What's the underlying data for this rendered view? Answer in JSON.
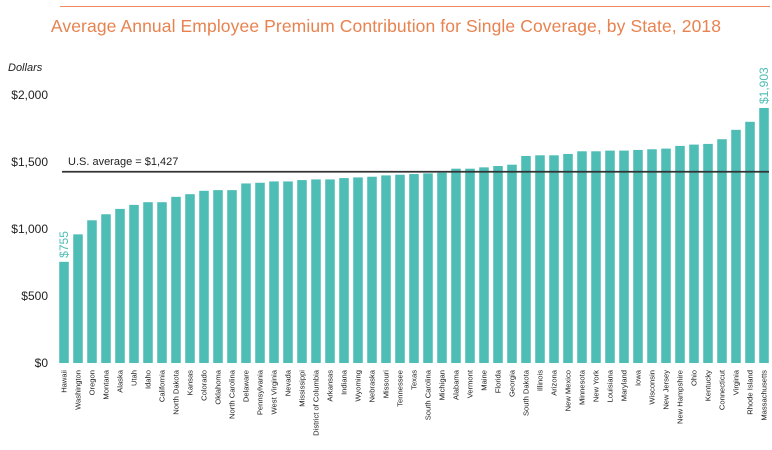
{
  "chart_data": {
    "type": "bar",
    "title": "Average Annual Employee Premium Contribution for Single Coverage, by State, 2018",
    "ylabel": "Dollars",
    "xlabel": "",
    "ylim": [
      0,
      2000
    ],
    "y_ticks": [
      0,
      500,
      1000,
      1500,
      2000
    ],
    "y_tick_labels": [
      "$0",
      "$500",
      "$1,000",
      "$1,500",
      "$2,000"
    ],
    "grid": false,
    "bar_color": "#4dbdb5",
    "reference_line": {
      "label": "U.S. average = $1,427",
      "value": 1427,
      "color": "#333333"
    },
    "categories": [
      "Hawaii",
      "Washington",
      "Oregon",
      "Montana",
      "Alaska",
      "Utah",
      "Idaho",
      "California",
      "North Dakota",
      "Kansas",
      "Colorado",
      "Oklahoma",
      "North Carolina",
      "Delaware",
      "Pennsylvania",
      "West Virginia",
      "Nevada",
      "Mississippi",
      "District of Columbia",
      "Arkansas",
      "Indiana",
      "Wyoming",
      "Nebraska",
      "Missouri",
      "Tennessee",
      "Texas",
      "South Carolina",
      "Michigan",
      "Alabama",
      "Vermont",
      "Maine",
      "Florida",
      "Georgia",
      "South Dakota",
      "Illinois",
      "Arizona",
      "New Mexico",
      "Minnesota",
      "New York",
      "Louisiana",
      "Maryland",
      "Iowa",
      "Wisconsin",
      "New Jersey",
      "New Hampshire",
      "Ohio",
      "Kentucky",
      "Connecticut",
      "Virginia",
      "Rhode Island",
      "Massachusetts"
    ],
    "values": [
      755,
      960,
      1065,
      1110,
      1150,
      1180,
      1200,
      1200,
      1240,
      1260,
      1285,
      1290,
      1290,
      1340,
      1345,
      1355,
      1355,
      1365,
      1370,
      1370,
      1380,
      1385,
      1390,
      1400,
      1405,
      1410,
      1415,
      1420,
      1450,
      1450,
      1460,
      1470,
      1480,
      1545,
      1550,
      1550,
      1560,
      1580,
      1580,
      1585,
      1585,
      1590,
      1595,
      1600,
      1620,
      1630,
      1635,
      1670,
      1740,
      1800,
      1903
    ],
    "data_labels": [
      {
        "category": "Hawaii",
        "text": "$755"
      },
      {
        "category": "Massachusetts",
        "text": "$1,903"
      }
    ]
  }
}
